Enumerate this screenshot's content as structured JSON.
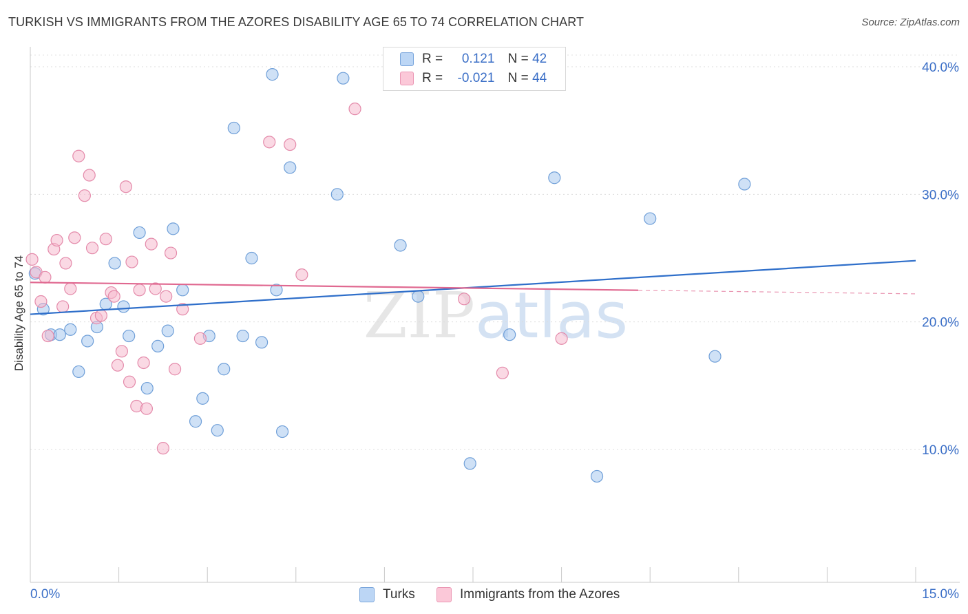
{
  "chart_data": {
    "type": "scatter",
    "title": "TURKISH VS IMMIGRANTS FROM THE AZORES DISABILITY AGE 65 TO 74 CORRELATION CHART",
    "source": "Source: ZipAtlas.com",
    "ylabel": "Disability Age 65 to 74",
    "xlabel": "",
    "xlim": [
      0,
      15
    ],
    "ylim": [
      0,
      42
    ],
    "x_tick_labels": [
      "0.0%",
      "15.0%"
    ],
    "y_ticks": [
      10,
      20,
      30,
      40
    ],
    "y_tick_labels": [
      "10.0%",
      "20.0%",
      "30.0%",
      "40.0%"
    ],
    "watermark": "ZIPatlas",
    "grid": true,
    "legend": {
      "placement": "top-center",
      "items": [
        {
          "r_label": "R =",
          "r_value": "0.121",
          "n_label": "N =",
          "n_value": "42"
        },
        {
          "r_label": "R =",
          "r_value": "-0.021",
          "n_label": "N =",
          "n_value": "44"
        }
      ]
    },
    "series": [
      {
        "name": "Turks",
        "color": "#a8c8ee",
        "stroke": "#6f9fd8",
        "line_color": "#2f6fca",
        "trend": {
          "x0": 0,
          "y0": 20.6,
          "x1": 15,
          "y1": 24.8,
          "dash_from": null
        },
        "points": [
          [
            0.08,
            23.8
          ],
          [
            0.22,
            21.0
          ],
          [
            0.35,
            19.0
          ],
          [
            0.5,
            19.0
          ],
          [
            0.68,
            19.4
          ],
          [
            0.82,
            16.1
          ],
          [
            0.97,
            18.5
          ],
          [
            1.13,
            19.6
          ],
          [
            1.28,
            21.4
          ],
          [
            1.43,
            24.6
          ],
          [
            1.58,
            21.2
          ],
          [
            1.67,
            18.9
          ],
          [
            1.85,
            27.0
          ],
          [
            1.98,
            14.8
          ],
          [
            2.16,
            18.1
          ],
          [
            2.33,
            19.3
          ],
          [
            2.42,
            27.3
          ],
          [
            2.58,
            22.5
          ],
          [
            2.8,
            12.2
          ],
          [
            2.92,
            14.0
          ],
          [
            3.03,
            18.9
          ],
          [
            3.17,
            11.5
          ],
          [
            3.28,
            16.3
          ],
          [
            3.45,
            35.2
          ],
          [
            3.6,
            18.9
          ],
          [
            3.75,
            25.0
          ],
          [
            3.92,
            18.4
          ],
          [
            4.1,
            39.4
          ],
          [
            4.17,
            22.5
          ],
          [
            4.27,
            11.4
          ],
          [
            4.4,
            32.1
          ],
          [
            5.2,
            30.0
          ],
          [
            5.3,
            39.1
          ],
          [
            6.27,
            26.0
          ],
          [
            6.57,
            22.0
          ],
          [
            7.45,
            8.9
          ],
          [
            8.12,
            19.0
          ],
          [
            8.88,
            31.3
          ],
          [
            9.6,
            7.9
          ],
          [
            10.5,
            28.1
          ],
          [
            11.6,
            17.3
          ],
          [
            12.1,
            30.8
          ]
        ]
      },
      {
        "name": "Immigrants from the Azores",
        "color": "#f6b9cd",
        "stroke": "#e48aaa",
        "line_color": "#e06890",
        "trend": {
          "x0": 0,
          "y0": 23.1,
          "x1": 15,
          "y1": 22.2,
          "dash_from": 10.3
        },
        "points": [
          [
            0.03,
            24.9
          ],
          [
            0.1,
            23.9
          ],
          [
            0.18,
            21.6
          ],
          [
            0.25,
            23.5
          ],
          [
            0.3,
            18.9
          ],
          [
            0.4,
            25.7
          ],
          [
            0.45,
            26.4
          ],
          [
            0.55,
            21.2
          ],
          [
            0.6,
            24.6
          ],
          [
            0.68,
            22.6
          ],
          [
            0.75,
            26.6
          ],
          [
            0.82,
            33.0
          ],
          [
            0.92,
            29.9
          ],
          [
            1.0,
            31.5
          ],
          [
            1.05,
            25.8
          ],
          [
            1.12,
            20.3
          ],
          [
            1.2,
            20.5
          ],
          [
            1.28,
            26.5
          ],
          [
            1.37,
            22.3
          ],
          [
            1.42,
            22.0
          ],
          [
            1.48,
            16.6
          ],
          [
            1.55,
            17.7
          ],
          [
            1.62,
            30.6
          ],
          [
            1.68,
            15.3
          ],
          [
            1.72,
            24.7
          ],
          [
            1.8,
            13.4
          ],
          [
            1.85,
            22.5
          ],
          [
            1.92,
            16.8
          ],
          [
            1.97,
            13.2
          ],
          [
            2.05,
            26.1
          ],
          [
            2.12,
            22.6
          ],
          [
            2.25,
            10.1
          ],
          [
            2.3,
            22.0
          ],
          [
            2.38,
            25.4
          ],
          [
            2.45,
            16.3
          ],
          [
            2.58,
            21.0
          ],
          [
            2.88,
            18.7
          ],
          [
            4.05,
            34.1
          ],
          [
            4.4,
            33.9
          ],
          [
            4.6,
            23.7
          ],
          [
            5.5,
            36.7
          ],
          [
            7.35,
            21.8
          ],
          [
            8.0,
            16.0
          ],
          [
            9.0,
            18.7
          ]
        ]
      }
    ]
  },
  "bottom_legend": {
    "items": [
      "Turks",
      "Immigrants from the Azores"
    ]
  }
}
